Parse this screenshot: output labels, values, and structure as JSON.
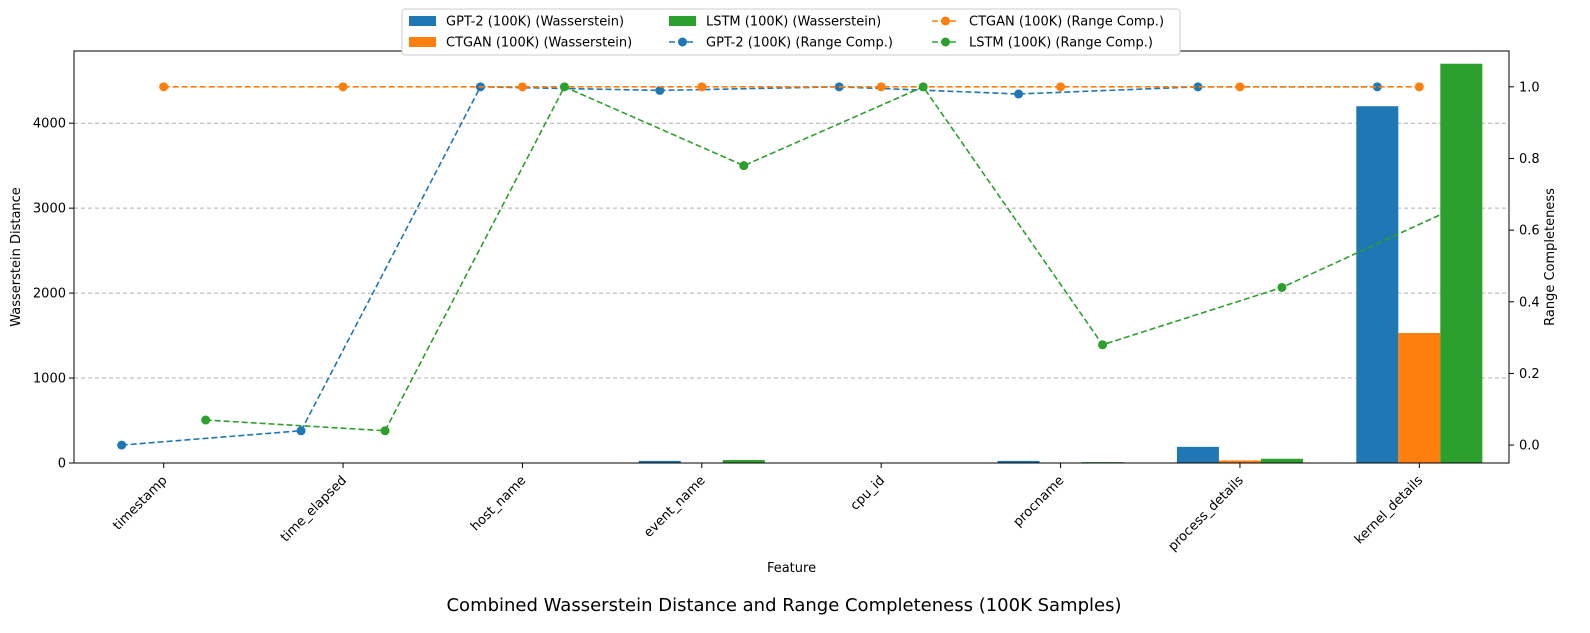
{
  "chart_data": {
    "type": "bar",
    "title": "Combined Wasserstein Distance and Range Completeness (100K Samples)",
    "xlabel": "Feature",
    "ylabel": "Wasserstein Distance",
    "y2label": "Range Completeness",
    "ylim": [
      0,
      4850
    ],
    "y2lim": [
      -0.05,
      1.1
    ],
    "yticks": [
      "0",
      "1000",
      "2000",
      "3000",
      "4000"
    ],
    "y2ticks": [
      "0.0",
      "0.2",
      "0.4",
      "0.6",
      "0.8",
      "1.0"
    ],
    "grid": "horizontal dashed (left axis)",
    "legend_position": "top-center",
    "categories": [
      "timestamp",
      "time_elapsed",
      "host_name",
      "event_name",
      "cpu_id",
      "procname",
      "process_details",
      "kernel_details"
    ],
    "bar_series": [
      {
        "name": "GPT-2 (100K) (Wasserstein)",
        "color": "#1f77b4",
        "values": [
          0,
          0,
          0,
          25,
          0,
          25,
          190,
          4200
        ]
      },
      {
        "name": "CTGAN (100K) (Wasserstein)",
        "color": "#ff7f0e",
        "values": [
          0,
          0,
          0,
          5,
          0,
          5,
          30,
          1530
        ]
      },
      {
        "name": "LSTM (100K) (Wasserstein)",
        "color": "#2ca02c",
        "values": [
          0,
          0,
          0,
          35,
          0,
          10,
          50,
          4700
        ]
      }
    ],
    "line_series": [
      {
        "name": "GPT-2 (100K) (Range Comp.)",
        "color": "#1f77b4",
        "values": [
          0.0,
          0.04,
          1.0,
          0.99,
          1.0,
          0.98,
          1.0,
          1.0
        ]
      },
      {
        "name": "CTGAN (100K) (Range Comp.)",
        "color": "#ff7f0e",
        "values": [
          1.0,
          1.0,
          1.0,
          1.0,
          1.0,
          1.0,
          1.0,
          1.0
        ]
      },
      {
        "name": "LSTM (100K) (Range Comp.)",
        "color": "#2ca02c",
        "values": [
          0.07,
          0.04,
          1.0,
          0.78,
          1.0,
          0.28,
          0.44,
          0.67
        ]
      }
    ]
  }
}
